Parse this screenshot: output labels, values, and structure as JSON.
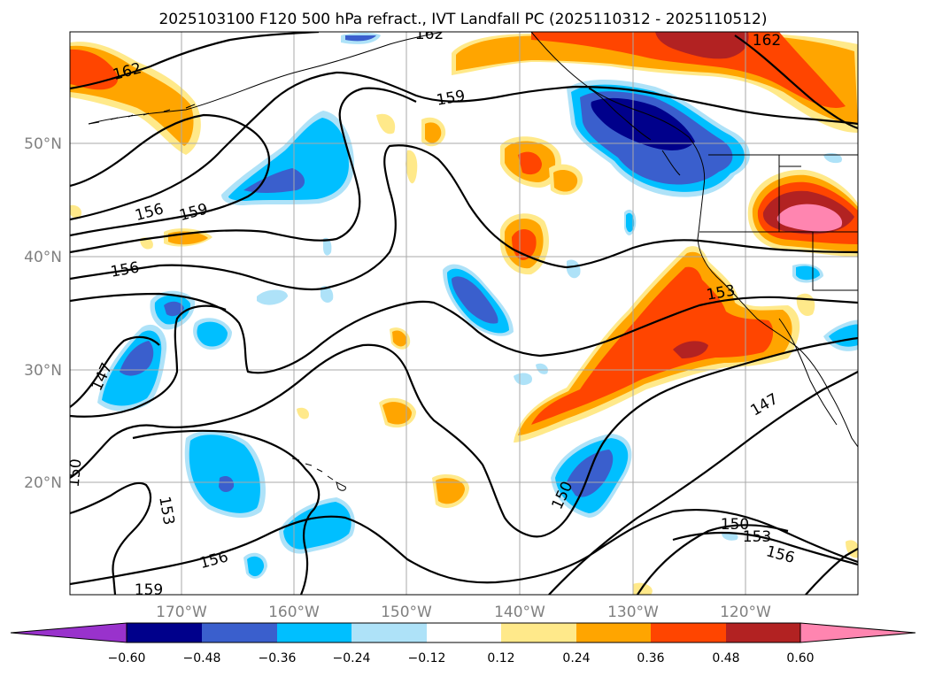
{
  "title": "2025103100 F120 500 hPa refract., IVT Landfall PC (2025110312 - 2025110512)",
  "axes": {
    "lat_labels": [
      "50°N",
      "40°N",
      "30°N",
      "20°N"
    ],
    "lon_labels": [
      "170°W",
      "160°W",
      "150°W",
      "140°W",
      "130°W",
      "120°W"
    ]
  },
  "contour_labels": [
    "162",
    "162",
    "162",
    "159",
    "159",
    "159",
    "156",
    "156",
    "156",
    "156",
    "153",
    "153",
    "153",
    "150",
    "150",
    "150",
    "147",
    "147"
  ],
  "colorbar": {
    "tick_labels": [
      "−0.60",
      "−0.48",
      "−0.36",
      "−0.24",
      "−0.12",
      "0.12",
      "0.24",
      "0.36",
      "0.48",
      "0.60"
    ],
    "colors": [
      "#9932cc",
      "#00008b",
      "#3a5fcd",
      "#00bfff",
      "#aee2f8",
      "#ffffff",
      "#ffe98a",
      "#ffa500",
      "#ff4500",
      "#b22222",
      "#ff85b0"
    ]
  },
  "fill_colors": {
    "neg_very_dark": "#00008b",
    "neg_dark": "#3a5fcd",
    "neg_mid": "#00bfff",
    "neg_light": "#aee2f8",
    "pos_light": "#ffe98a",
    "pos_mid": "#ffa500",
    "pos_high": "#ff4500",
    "pos_very_high": "#b22222",
    "pos_max": "#ff85b0"
  }
}
